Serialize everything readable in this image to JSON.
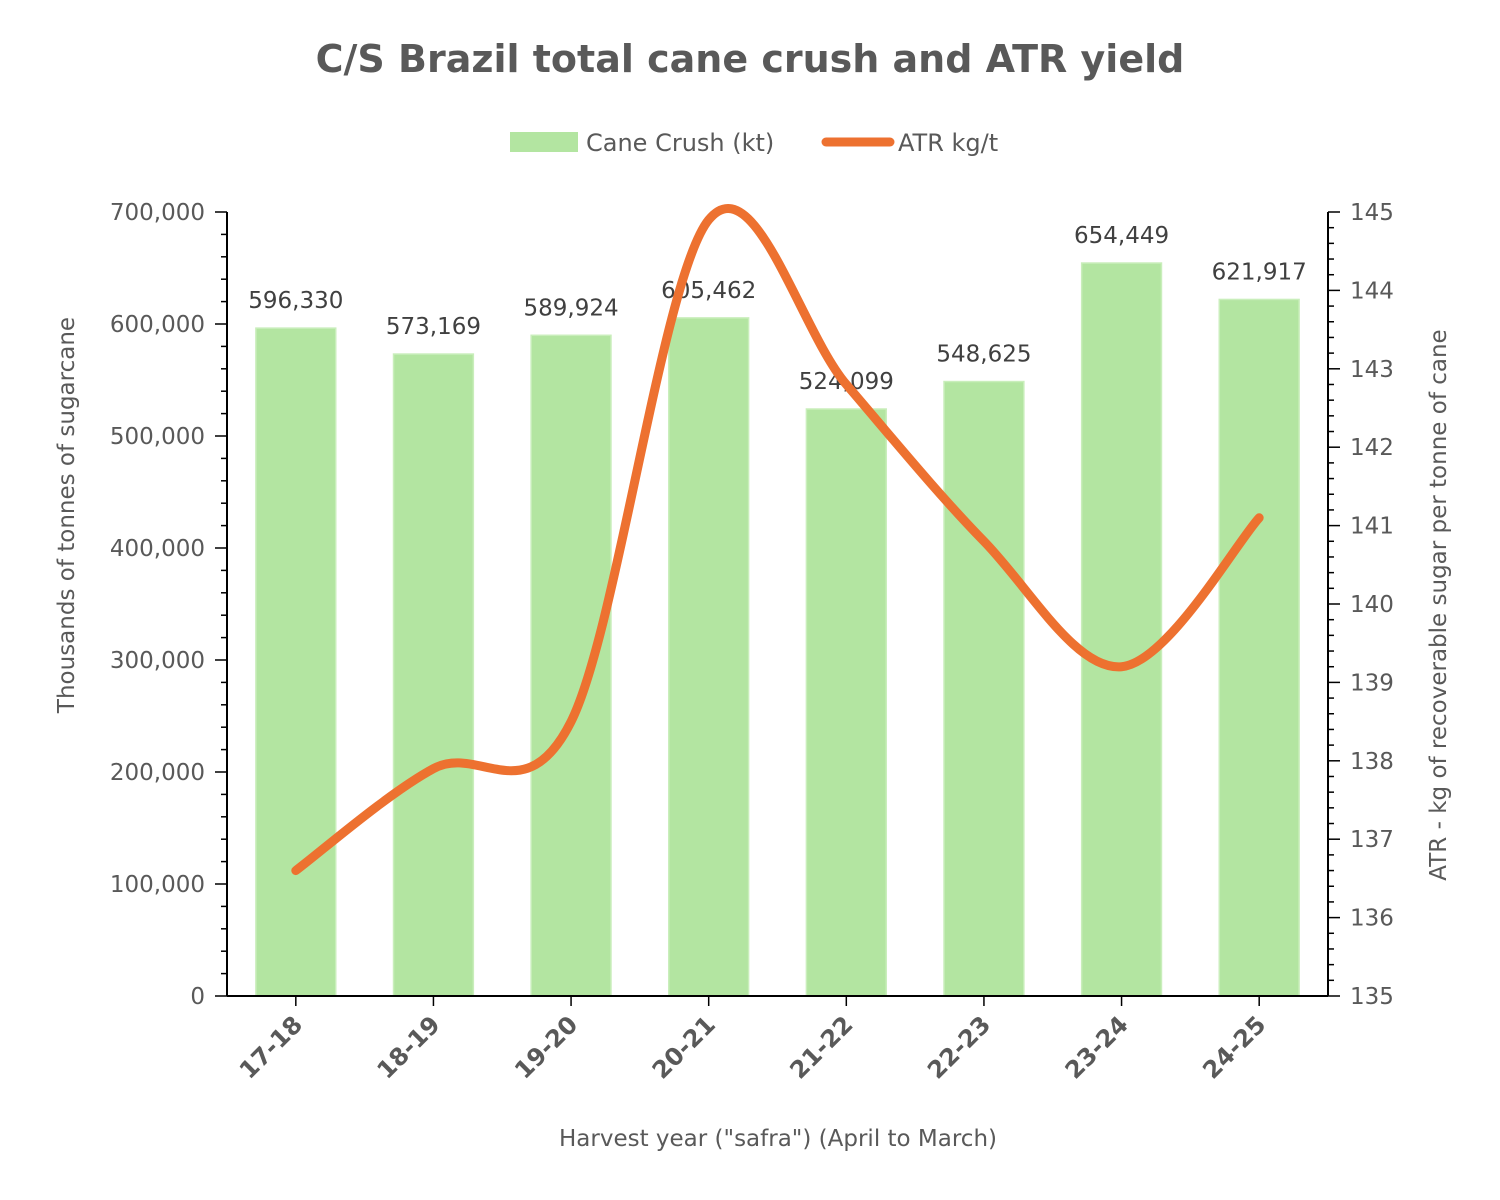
{
  "chart_data": {
    "type": "bar",
    "title": "C/S Brazil total cane crush and ATR yield",
    "xlabel": "Harvest year (\"safra\") (April to March)",
    "ylabel": "Thousands of tonnes of sugarcane",
    "y2label": "ATR - kg of recoverable sugar per tonne of cane",
    "categories": [
      "17-18",
      "18-19",
      "19-20",
      "20-21",
      "21-22",
      "22-23",
      "23-24",
      "24-25"
    ],
    "series": [
      {
        "name": "Cane Crush (kt)",
        "type": "bar",
        "axis": "left",
        "color": "#b3e5a1",
        "values": [
          596330,
          573169,
          589924,
          605462,
          524099,
          548625,
          654449,
          621917
        ],
        "labels": [
          "596,330",
          "573,169",
          "589,924",
          "605,462",
          "524,099",
          "548,625",
          "654,449",
          "621,917"
        ]
      },
      {
        "name": "ATR kg/t",
        "type": "line",
        "axis": "right",
        "color": "#ed7130",
        "smooth": true,
        "values": [
          136.6,
          137.9,
          138.5,
          144.9,
          142.8,
          140.8,
          139.2,
          141.1
        ]
      }
    ],
    "ylim": [
      0,
      700000
    ],
    "y_ticks": [
      "0",
      "100,000",
      "200,000",
      "300,000",
      "400,000",
      "500,000",
      "600,000",
      "700,000"
    ],
    "y2lim": [
      135,
      145
    ],
    "y2_ticks": [
      "135",
      "136",
      "137",
      "138",
      "139",
      "140",
      "141",
      "142",
      "143",
      "144",
      "145"
    ],
    "legend_position": "top",
    "grid": false
  }
}
